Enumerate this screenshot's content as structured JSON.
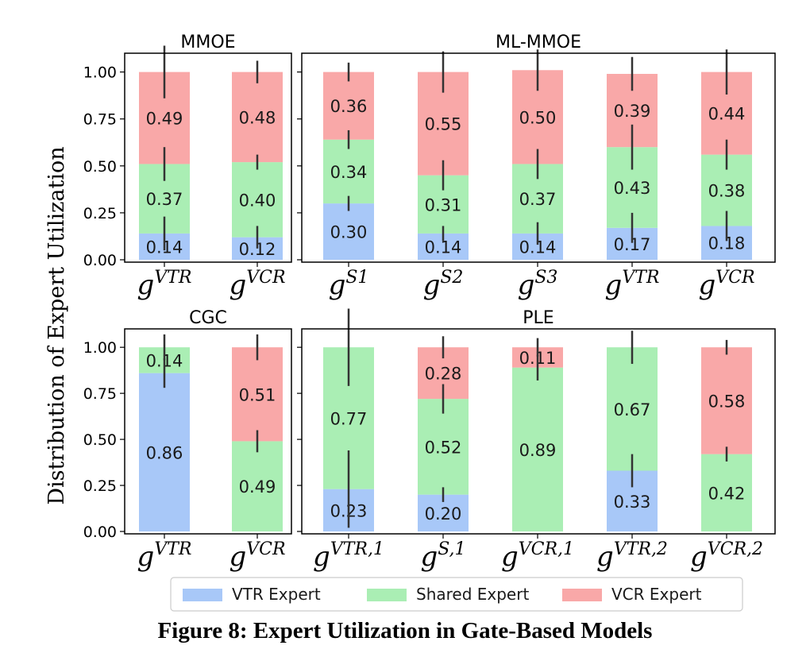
{
  "figure": {
    "ylabel": "Distribution of Expert Utilization",
    "caption": "Figure 8: Expert Utilization in Gate-Based Models"
  },
  "legend": {
    "placement": "bottom-center",
    "items": [
      {
        "label": "VTR Expert",
        "color": "#a8c8f8"
      },
      {
        "label": "Shared Expert",
        "color": "#aaeeb4"
      },
      {
        "label": "VCR Expert",
        "color": "#f9a8a8"
      }
    ]
  },
  "chart_data": [
    {
      "type": "bar",
      "stacked": true,
      "title": "MMOE",
      "ylim": [
        0,
        1.1
      ],
      "yticks": [
        "0.00",
        "0.25",
        "0.50",
        "0.75",
        "1.00"
      ],
      "categories": [
        {
          "base": "g",
          "sup": "VTR"
        },
        {
          "base": "g",
          "sup": "VCR"
        }
      ],
      "series": [
        {
          "name": "VTR Expert",
          "values": [
            0.14,
            0.12
          ]
        },
        {
          "name": "Shared Expert",
          "values": [
            0.37,
            0.4
          ]
        },
        {
          "name": "VCR Expert",
          "values": [
            0.49,
            0.48
          ]
        }
      ],
      "error_bars": [
        [
          0.09,
          0.06
        ],
        [
          0.09,
          0.04
        ],
        [
          0.14,
          0.06
        ]
      ]
    },
    {
      "type": "bar",
      "stacked": true,
      "title": "ML-MMOE",
      "ylim": [
        0,
        1.1
      ],
      "categories": [
        {
          "base": "g",
          "sup": "S1"
        },
        {
          "base": "g",
          "sup": "S2"
        },
        {
          "base": "g",
          "sup": "S3"
        },
        {
          "base": "g",
          "sup": "VTR"
        },
        {
          "base": "g",
          "sup": "VCR"
        }
      ],
      "series": [
        {
          "name": "VTR Expert",
          "values": [
            0.3,
            0.14,
            0.14,
            0.17,
            0.18
          ]
        },
        {
          "name": "Shared Expert",
          "values": [
            0.34,
            0.31,
            0.37,
            0.43,
            0.38
          ]
        },
        {
          "name": "VCR Expert",
          "values": [
            0.36,
            0.55,
            0.5,
            0.39,
            0.44
          ]
        }
      ],
      "error_bars": [
        [
          0.04,
          0.04,
          0.06,
          0.08,
          0.08
        ],
        [
          0.05,
          0.08,
          0.08,
          0.12,
          0.08
        ],
        [
          0.05,
          0.11,
          0.11,
          0.09,
          0.12
        ]
      ]
    },
    {
      "type": "bar",
      "stacked": true,
      "title": "CGC",
      "ylim": [
        0,
        1.1
      ],
      "yticks": [
        "0.00",
        "0.25",
        "0.50",
        "0.75",
        "1.00"
      ],
      "categories": [
        {
          "base": "g",
          "sup": "VTR"
        },
        {
          "base": "g",
          "sup": "VCR"
        }
      ],
      "series": [
        {
          "name": "VTR Expert",
          "values": [
            0.86,
            0.0
          ]
        },
        {
          "name": "Shared Expert",
          "values": [
            0.14,
            0.49
          ]
        },
        {
          "name": "VCR Expert",
          "values": [
            0.0,
            0.51
          ]
        }
      ],
      "error_bars": [
        [
          0.08,
          0.0
        ],
        [
          0.0,
          0.06
        ],
        [
          0.07,
          0.07
        ]
      ],
      "hidden_labels": [
        [
          false,
          true
        ],
        [
          false,
          false
        ],
        [
          true,
          false
        ]
      ]
    },
    {
      "type": "bar",
      "stacked": true,
      "title": "PLE",
      "ylim": [
        0,
        1.1
      ],
      "categories": [
        {
          "base": "g",
          "sup": "VTR,1"
        },
        {
          "base": "g",
          "sup": "S,1"
        },
        {
          "base": "g",
          "sup": "VCR,1"
        },
        {
          "base": "g",
          "sup": "VTR,2"
        },
        {
          "base": "g",
          "sup": "VCR,2"
        }
      ],
      "series": [
        {
          "name": "VTR Expert",
          "values": [
            0.23,
            0.2,
            0.0,
            0.33,
            0.0
          ]
        },
        {
          "name": "Shared Expert",
          "values": [
            0.77,
            0.52,
            0.89,
            0.67,
            0.42
          ]
        },
        {
          "name": "VCR Expert",
          "values": [
            0.0,
            0.28,
            0.11,
            0.0,
            0.58
          ]
        }
      ],
      "error_bars": [
        [
          0.21,
          0.04,
          0.0,
          0.09,
          0.0
        ],
        [
          0.0,
          0.08,
          0.07,
          0.0,
          0.04
        ],
        [
          0.21,
          0.06,
          0.05,
          0.09,
          0.04
        ]
      ],
      "hidden_labels": [
        [
          false,
          false,
          true,
          false,
          true
        ],
        [
          false,
          false,
          false,
          false,
          false
        ],
        [
          true,
          false,
          false,
          true,
          false
        ]
      ]
    }
  ]
}
